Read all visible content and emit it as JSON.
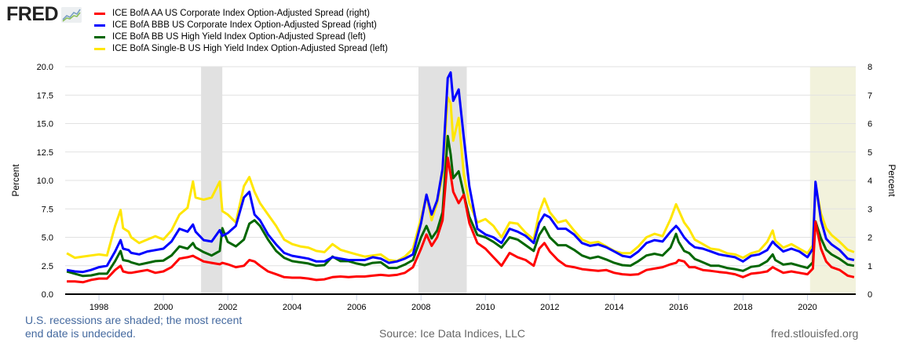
{
  "header": {
    "logo_text": "FRED",
    "logo_icon": "line-chart-icon"
  },
  "legend": [
    {
      "label": "ICE BofA AA US Corporate Index Option-Adjusted Spread (right)",
      "color": "#ff0000"
    },
    {
      "label": "ICE BofA BBB US Corporate Index Option-Adjusted Spread (right)",
      "color": "#0000ff"
    },
    {
      "label": "ICE BofA BB US High Yield Index Option-Adjusted Spread (left)",
      "color": "#006600"
    },
    {
      "label": "ICE BofA Single-B US High Yield Index Option-Adjusted Spread (left)",
      "color": "#ffe600"
    }
  ],
  "footer": {
    "note_line1": "U.S. recessions are shaded; the most recent",
    "note_line2": "end date is undecided.",
    "source": "Source: Ice Data Indices, LLC",
    "site": "fred.stlouisfed.org"
  },
  "chart_data": {
    "type": "line",
    "title": "",
    "xlabel": "",
    "ylabel_left": "Percent",
    "ylabel_right": "Percent",
    "xlim": [
      1996.95,
      2021.5
    ],
    "ylim_left": [
      0,
      20
    ],
    "ylim_right": [
      0,
      8
    ],
    "yticks_left": [
      "0.0",
      "2.5",
      "5.0",
      "7.5",
      "10.0",
      "12.5",
      "15.0",
      "17.5",
      "20.0"
    ],
    "yticks_right": [
      "0",
      "1",
      "2",
      "3",
      "4",
      "5",
      "6",
      "7",
      "8"
    ],
    "xticks": [
      "1998",
      "2000",
      "2002",
      "2004",
      "2006",
      "2008",
      "2010",
      "2012",
      "2014",
      "2016",
      "2018",
      "2020"
    ],
    "grid": true,
    "recessions": [
      {
        "start": 2001.17,
        "end": 2001.83,
        "color": "#e1e1e1"
      },
      {
        "start": 2007.92,
        "end": 2009.42,
        "color": "#e1e1e1"
      },
      {
        "start": 2020.08,
        "end": 2021.5,
        "color": "#f2f2dc"
      }
    ],
    "x": [
      1997.0,
      1997.25,
      1997.5,
      1997.75,
      1998.0,
      1998.25,
      1998.5,
      1998.67,
      1998.75,
      1998.92,
      1999.0,
      1999.25,
      1999.5,
      1999.75,
      2000.0,
      2000.25,
      2000.5,
      2000.75,
      2000.92,
      2001.0,
      2001.25,
      2001.5,
      2001.75,
      2001.83,
      2002.0,
      2002.25,
      2002.5,
      2002.67,
      2002.83,
      2003.0,
      2003.25,
      2003.5,
      2003.75,
      2004.0,
      2004.25,
      2004.5,
      2004.75,
      2005.0,
      2005.25,
      2005.5,
      2005.75,
      2006.0,
      2006.25,
      2006.5,
      2006.75,
      2007.0,
      2007.25,
      2007.5,
      2007.75,
      2008.0,
      2008.17,
      2008.33,
      2008.5,
      2008.67,
      2008.83,
      2008.92,
      2009.0,
      2009.17,
      2009.33,
      2009.5,
      2009.75,
      2010.0,
      2010.25,
      2010.5,
      2010.75,
      2011.0,
      2011.25,
      2011.5,
      2011.67,
      2011.83,
      2012.0,
      2012.25,
      2012.5,
      2012.75,
      2013.0,
      2013.25,
      2013.5,
      2013.75,
      2014.0,
      2014.25,
      2014.5,
      2014.75,
      2015.0,
      2015.25,
      2015.5,
      2015.75,
      2015.92,
      2016.0,
      2016.17,
      2016.33,
      2016.5,
      2016.75,
      2017.0,
      2017.25,
      2017.5,
      2017.75,
      2018.0,
      2018.25,
      2018.5,
      2018.75,
      2018.92,
      2019.0,
      2019.25,
      2019.5,
      2019.75,
      2020.0,
      2020.17,
      2020.25,
      2020.42,
      2020.58,
      2020.75,
      2021.0,
      2021.25,
      2021.45
    ],
    "series": [
      {
        "name": "ICE BofA AA US Corporate Index Option-Adjusted Spread",
        "axis": "right",
        "color": "#ff0000",
        "values": [
          0.45,
          0.45,
          0.42,
          0.5,
          0.55,
          0.55,
          0.85,
          1.0,
          0.8,
          0.75,
          0.75,
          0.8,
          0.85,
          0.75,
          0.8,
          0.95,
          1.25,
          1.3,
          1.35,
          1.3,
          1.15,
          1.1,
          1.05,
          1.1,
          1.05,
          0.95,
          1.0,
          1.2,
          1.15,
          1.0,
          0.8,
          0.7,
          0.6,
          0.58,
          0.58,
          0.55,
          0.5,
          0.52,
          0.6,
          0.62,
          0.6,
          0.62,
          0.62,
          0.65,
          0.68,
          0.65,
          0.68,
          0.75,
          0.95,
          1.6,
          2.1,
          1.7,
          2.0,
          2.6,
          4.8,
          4.2,
          3.6,
          3.2,
          3.5,
          2.5,
          1.8,
          1.6,
          1.3,
          1.0,
          1.45,
          1.3,
          1.2,
          1.0,
          1.6,
          1.8,
          1.5,
          1.2,
          1.0,
          0.95,
          0.88,
          0.85,
          0.82,
          0.85,
          0.75,
          0.7,
          0.68,
          0.7,
          0.85,
          0.9,
          0.95,
          1.05,
          1.1,
          1.2,
          1.15,
          0.95,
          0.95,
          0.85,
          0.82,
          0.78,
          0.75,
          0.7,
          0.6,
          0.72,
          0.75,
          0.8,
          0.95,
          0.9,
          0.75,
          0.8,
          0.75,
          0.7,
          0.9,
          2.55,
          1.6,
          1.15,
          0.95,
          0.85,
          0.65,
          0.6,
          0.55
        ]
      },
      {
        "name": "ICE BofA BBB US Corporate Index Option-Adjusted Spread",
        "axis": "right",
        "color": "#0000ff",
        "values": [
          0.85,
          0.8,
          0.78,
          0.85,
          0.95,
          1.0,
          1.5,
          1.9,
          1.6,
          1.55,
          1.45,
          1.4,
          1.5,
          1.55,
          1.6,
          1.85,
          2.3,
          2.2,
          2.45,
          2.2,
          1.9,
          1.85,
          2.25,
          2.05,
          2.15,
          2.4,
          3.4,
          3.6,
          2.8,
          2.6,
          2.1,
          1.75,
          1.45,
          1.35,
          1.3,
          1.25,
          1.15,
          1.15,
          1.3,
          1.25,
          1.2,
          1.2,
          1.2,
          1.3,
          1.25,
          1.1,
          1.15,
          1.25,
          1.4,
          2.5,
          3.5,
          2.8,
          3.3,
          4.4,
          7.6,
          7.8,
          6.8,
          7.2,
          5.5,
          3.8,
          2.3,
          2.1,
          2.0,
          1.8,
          2.3,
          2.2,
          2.05,
          1.8,
          2.5,
          2.8,
          2.7,
          2.3,
          2.3,
          2.1,
          1.8,
          1.7,
          1.75,
          1.65,
          1.5,
          1.35,
          1.3,
          1.5,
          1.8,
          1.9,
          1.85,
          2.2,
          2.4,
          2.3,
          2.0,
          1.8,
          1.65,
          1.6,
          1.5,
          1.4,
          1.35,
          1.3,
          1.15,
          1.35,
          1.4,
          1.55,
          1.85,
          1.75,
          1.5,
          1.6,
          1.5,
          1.3,
          1.6,
          3.95,
          2.6,
          1.95,
          1.75,
          1.55,
          1.25,
          1.2,
          1.1
        ]
      },
      {
        "name": "ICE BofA BB US High Yield Index Option-Adjusted Spread",
        "axis": "left",
        "color": "#006600",
        "values": [
          2.0,
          1.8,
          1.6,
          1.65,
          1.8,
          1.8,
          2.9,
          3.8,
          3.0,
          2.9,
          2.8,
          2.6,
          2.75,
          2.9,
          2.95,
          3.4,
          4.2,
          4.0,
          4.5,
          4.1,
          3.7,
          3.4,
          3.8,
          5.8,
          4.6,
          4.2,
          4.8,
          6.2,
          6.5,
          6.0,
          4.8,
          3.8,
          3.2,
          2.9,
          2.8,
          2.7,
          2.5,
          2.55,
          3.3,
          2.9,
          2.9,
          2.7,
          2.55,
          2.75,
          2.8,
          2.3,
          2.3,
          2.6,
          3.0,
          5.0,
          6.0,
          4.9,
          5.6,
          7.2,
          13.9,
          12.3,
          10.2,
          10.8,
          8.8,
          6.8,
          5.2,
          5.0,
          4.6,
          4.1,
          5.0,
          4.8,
          4.3,
          3.8,
          5.2,
          5.9,
          5.0,
          4.3,
          4.3,
          3.9,
          3.4,
          3.15,
          3.3,
          3.05,
          2.75,
          2.55,
          2.5,
          2.9,
          3.4,
          3.55,
          3.4,
          4.1,
          5.3,
          4.6,
          3.8,
          3.6,
          3.1,
          2.8,
          2.5,
          2.5,
          2.3,
          2.2,
          2.05,
          2.4,
          2.5,
          2.9,
          3.5,
          3.0,
          2.6,
          2.7,
          2.5,
          2.3,
          2.8,
          6.4,
          4.9,
          3.9,
          3.5,
          3.1,
          2.6,
          2.5,
          2.4
        ]
      },
      {
        "name": "ICE BofA Single-B US High Yield Index Option-Adjusted Spread",
        "axis": "left",
        "color": "#ffe600",
        "values": [
          3.6,
          3.2,
          3.3,
          3.4,
          3.5,
          3.4,
          6.0,
          7.4,
          5.8,
          5.5,
          5.0,
          4.5,
          4.8,
          5.1,
          4.8,
          5.6,
          7.0,
          7.6,
          9.9,
          8.5,
          8.3,
          8.5,
          9.9,
          7.3,
          7.0,
          6.3,
          9.5,
          10.3,
          9.0,
          8.0,
          7.0,
          6.0,
          4.8,
          4.4,
          4.2,
          4.1,
          3.8,
          3.7,
          4.4,
          3.9,
          3.7,
          3.5,
          3.3,
          3.4,
          3.5,
          3.0,
          2.9,
          3.3,
          4.0,
          6.7,
          8.7,
          6.5,
          8.0,
          10.5,
          17.3,
          16.8,
          13.5,
          15.5,
          10.5,
          8.0,
          6.3,
          6.6,
          6.0,
          5.0,
          6.3,
          6.2,
          5.4,
          4.8,
          7.2,
          8.4,
          7.2,
          6.3,
          6.5,
          5.6,
          4.8,
          4.5,
          4.6,
          4.2,
          3.8,
          3.6,
          3.6,
          4.2,
          5.0,
          5.3,
          5.1,
          6.6,
          7.9,
          7.4,
          6.3,
          5.7,
          4.8,
          4.4,
          4.0,
          3.9,
          3.6,
          3.5,
          3.2,
          3.6,
          3.8,
          4.6,
          5.6,
          4.7,
          4.1,
          4.4,
          4.0,
          3.6,
          4.3,
          9.6,
          7.1,
          5.8,
          5.2,
          4.6,
          3.9,
          3.7,
          3.5
        ]
      }
    ]
  }
}
